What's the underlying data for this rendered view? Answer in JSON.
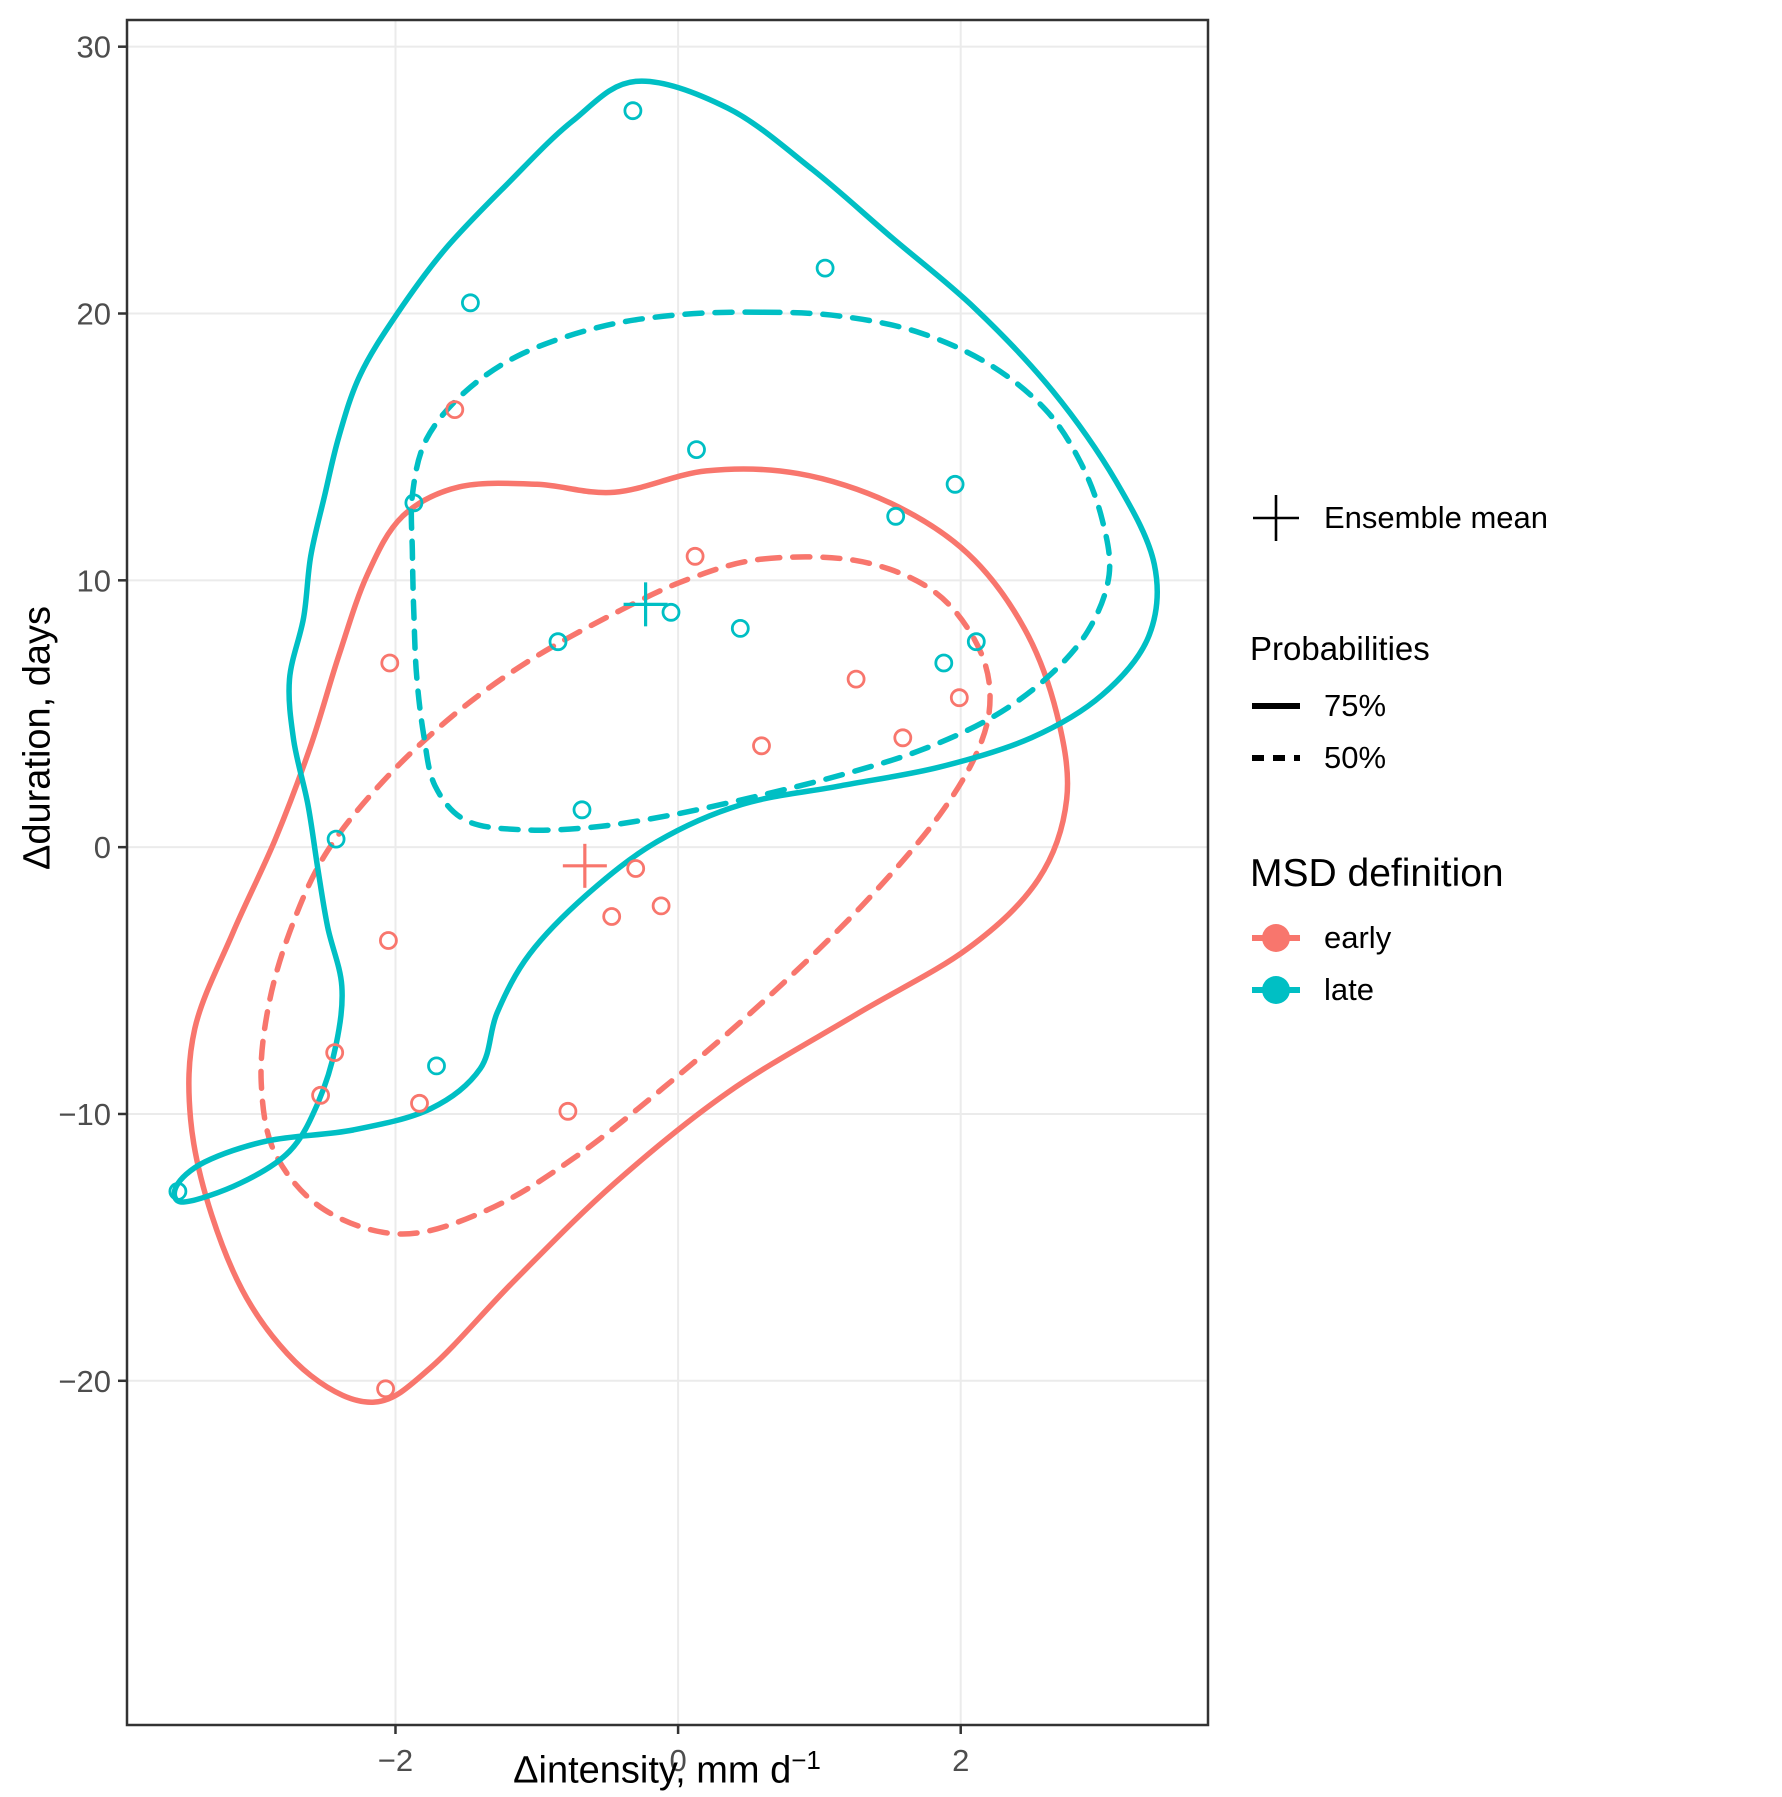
{
  "chart_data": {
    "type": "scatter",
    "title": "",
    "xlabel": "Δintensity, mm d⁻¹",
    "xlabel_main": "Δintensity, mm d",
    "xlabel_sup": "−1",
    "ylabel": "Δduration, days",
    "xlim": [
      -3.9,
      3.75
    ],
    "ylim": [
      -32.9,
      31.0
    ],
    "x_ticks": [
      -2,
      0,
      2
    ],
    "y_ticks": [
      -20,
      -10,
      0,
      10,
      20,
      30
    ],
    "grid": "major-only",
    "legend_position": "right",
    "colors": {
      "grid": "#ebebeb",
      "panel_border": "#333333",
      "tick_text": "#4d4d4d",
      "early": "#F8766D",
      "late": "#00BFC4"
    },
    "series": [
      {
        "name": "early",
        "color": "#F8766D",
        "mean": [
          -0.66,
          -0.7
        ],
        "points": [
          [
            -1.58,
            16.4
          ],
          [
            0.12,
            10.9
          ],
          [
            -2.04,
            6.9
          ],
          [
            1.26,
            6.3
          ],
          [
            1.99,
            5.6
          ],
          [
            1.59,
            4.1
          ],
          [
            0.59,
            3.8
          ],
          [
            -0.3,
            -0.8
          ],
          [
            -0.12,
            -2.2
          ],
          [
            -0.47,
            -2.6
          ],
          [
            -2.05,
            -3.5
          ],
          [
            -2.43,
            -7.7
          ],
          [
            -2.53,
            -9.3
          ],
          [
            -1.83,
            -9.6
          ],
          [
            -0.78,
            -9.9
          ],
          [
            -2.07,
            -20.3
          ]
        ],
        "contours": [
          {
            "level": "75%",
            "style": "solid",
            "points": [
              [
                -1.95,
                12.4
              ],
              [
                -1.55,
                13.5
              ],
              [
                -1.0,
                13.6
              ],
              [
                -0.45,
                13.3
              ],
              [
                0.2,
                14.1
              ],
              [
                0.85,
                14.0
              ],
              [
                1.5,
                12.9
              ],
              [
                2.05,
                11.0
              ],
              [
                2.45,
                8.2
              ],
              [
                2.68,
                5.0
              ],
              [
                2.75,
                1.8
              ],
              [
                2.55,
                -1.2
              ],
              [
                2.05,
                -3.8
              ],
              [
                1.25,
                -6.3
              ],
              [
                0.35,
                -9.2
              ],
              [
                -0.45,
                -12.6
              ],
              [
                -1.15,
                -16.2
              ],
              [
                -1.75,
                -19.5
              ],
              [
                -2.15,
                -20.8
              ],
              [
                -2.6,
                -19.8
              ],
              [
                -3.02,
                -17.2
              ],
              [
                -3.3,
                -13.8
              ],
              [
                -3.45,
                -10.2
              ],
              [
                -3.42,
                -6.8
              ],
              [
                -3.15,
                -3.2
              ],
              [
                -2.85,
                0.3
              ],
              [
                -2.6,
                3.8
              ],
              [
                -2.4,
                7.2
              ],
              [
                -2.2,
                10.2
              ]
            ]
          },
          {
            "level": "50%",
            "style": "dashed",
            "points": [
              [
                0.6,
                10.8
              ],
              [
                1.25,
                10.75
              ],
              [
                1.75,
                9.8
              ],
              [
                2.05,
                8.2
              ],
              [
                2.2,
                6.2
              ],
              [
                2.15,
                4.0
              ],
              [
                1.85,
                1.2
              ],
              [
                1.3,
                -2.2
              ],
              [
                0.6,
                -5.8
              ],
              [
                -0.1,
                -9.0
              ],
              [
                -0.75,
                -11.7
              ],
              [
                -1.35,
                -13.6
              ],
              [
                -1.95,
                -14.5
              ],
              [
                -2.5,
                -13.6
              ],
              [
                -2.85,
                -11.5
              ],
              [
                -2.95,
                -8.8
              ],
              [
                -2.9,
                -6.0
              ],
              [
                -2.75,
                -3.2
              ],
              [
                -2.5,
                -0.3
              ],
              [
                -2.1,
                2.4
              ],
              [
                -1.6,
                4.9
              ],
              [
                -1.05,
                7.0
              ],
              [
                -0.4,
                8.9
              ],
              [
                0.1,
                10.1
              ]
            ]
          }
        ]
      },
      {
        "name": "late",
        "color": "#00BFC4",
        "mean": [
          -0.23,
          9.1
        ],
        "points": [
          [
            -0.32,
            27.6
          ],
          [
            1.04,
            21.7
          ],
          [
            -1.47,
            20.4
          ],
          [
            0.13,
            14.9
          ],
          [
            1.96,
            13.6
          ],
          [
            1.54,
            12.4
          ],
          [
            -1.87,
            12.9
          ],
          [
            -0.05,
            8.8
          ],
          [
            0.44,
            8.2
          ],
          [
            -0.85,
            7.7
          ],
          [
            2.11,
            7.7
          ],
          [
            1.88,
            6.9
          ],
          [
            -0.68,
            1.4
          ],
          [
            -2.42,
            0.3
          ],
          [
            -1.71,
            -8.2
          ],
          [
            -3.54,
            -12.9
          ]
        ],
        "contours": [
          {
            "level": "75%",
            "style": "solid",
            "points": [
              [
                -0.3,
                28.7
              ],
              [
                0.35,
                27.7
              ],
              [
                0.95,
                25.4
              ],
              [
                1.5,
                22.9
              ],
              [
                2.1,
                20.2
              ],
              [
                2.65,
                17.1
              ],
              [
                3.1,
                13.7
              ],
              [
                3.37,
                10.6
              ],
              [
                3.33,
                7.9
              ],
              [
                3.0,
                5.7
              ],
              [
                2.5,
                4.1
              ],
              [
                1.85,
                3.0
              ],
              [
                1.15,
                2.3
              ],
              [
                0.45,
                1.6
              ],
              [
                -0.15,
                0.2
              ],
              [
                -0.65,
                -1.8
              ],
              [
                -1.05,
                -4.0
              ],
              [
                -1.28,
                -6.2
              ],
              [
                -1.4,
                -8.3
              ],
              [
                -1.75,
                -9.8
              ],
              [
                -2.3,
                -10.6
              ],
              [
                -2.9,
                -11.0
              ],
              [
                -3.35,
                -11.8
              ],
              [
                -3.55,
                -12.7
              ],
              [
                -3.5,
                -13.3
              ],
              [
                -3.1,
                -12.6
              ],
              [
                -2.75,
                -11.4
              ],
              [
                -2.55,
                -9.6
              ],
              [
                -2.42,
                -7.4
              ],
              [
                -2.38,
                -5.2
              ],
              [
                -2.48,
                -3.0
              ],
              [
                -2.55,
                -0.8
              ],
              [
                -2.62,
                1.6
              ],
              [
                -2.72,
                4.0
              ],
              [
                -2.75,
                6.3
              ],
              [
                -2.65,
                8.6
              ],
              [
                -2.6,
                10.9
              ],
              [
                -2.5,
                13.2
              ],
              [
                -2.4,
                15.4
              ],
              [
                -2.25,
                17.7
              ],
              [
                -2.0,
                19.9
              ],
              [
                -1.65,
                22.4
              ],
              [
                -1.2,
                24.9
              ],
              [
                -0.75,
                27.2
              ]
            ]
          },
          {
            "level": "50%",
            "style": "dashed",
            "points": [
              [
                0.6,
                20.05
              ],
              [
                1.15,
                19.9
              ],
              [
                1.7,
                19.3
              ],
              [
                2.2,
                18.1
              ],
              [
                2.6,
                16.4
              ],
              [
                2.85,
                14.4
              ],
              [
                3.0,
                12.3
              ],
              [
                3.05,
                10.2
              ],
              [
                2.9,
                8.1
              ],
              [
                2.6,
                6.3
              ],
              [
                2.2,
                4.8
              ],
              [
                1.7,
                3.6
              ],
              [
                1.15,
                2.7
              ],
              [
                0.55,
                1.9
              ],
              [
                -0.05,
                1.2
              ],
              [
                -0.6,
                0.75
              ],
              [
                -1.1,
                0.65
              ],
              [
                -1.5,
                1.0
              ],
              [
                -1.72,
                2.3
              ],
              [
                -1.8,
                4.2
              ],
              [
                -1.85,
                6.4
              ],
              [
                -1.87,
                8.7
              ],
              [
                -1.88,
                11.0
              ],
              [
                -1.88,
                13.2
              ],
              [
                -1.78,
                15.3
              ],
              [
                -1.5,
                17.1
              ],
              [
                -1.1,
                18.5
              ],
              [
                -0.55,
                19.5
              ],
              [
                0.0,
                19.95
              ]
            ]
          }
        ]
      }
    ]
  },
  "legend": {
    "ensemble_mean_label": "Ensemble mean",
    "probabilities_title": "Probabilities",
    "prob_items": [
      {
        "label": "75%",
        "style": "solid"
      },
      {
        "label": "50%",
        "style": "dashed"
      }
    ],
    "msd_title": "MSD definition",
    "msd_items": [
      {
        "label": "early",
        "color": "#F8766D"
      },
      {
        "label": "late",
        "color": "#00BFC4"
      }
    ]
  }
}
